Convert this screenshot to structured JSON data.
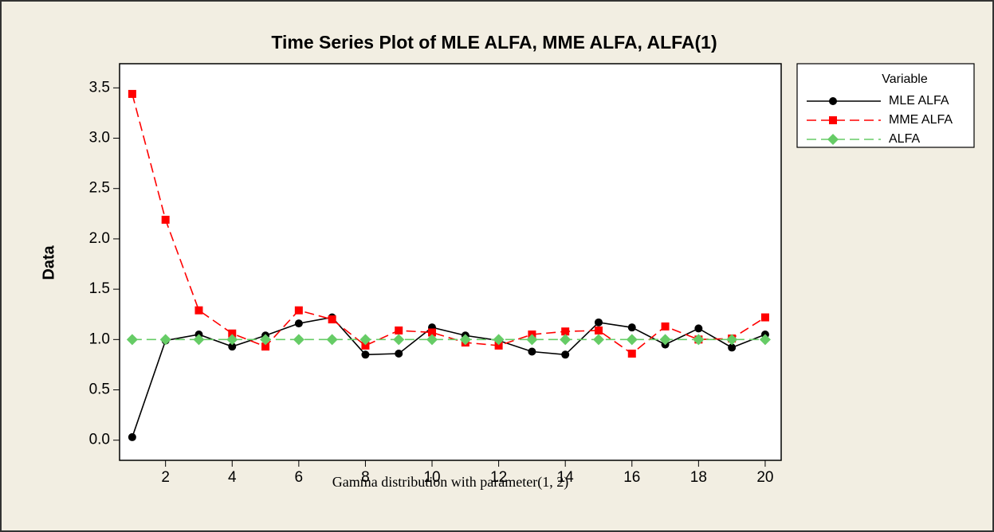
{
  "chart_data": {
    "type": "line",
    "title": "Time Series Plot of MLE ALFA, MME ALFA, ALFA(1)",
    "x_label": "Gamma distribution with parameter(1, 2)",
    "y_label": "Data",
    "legend_title": "Variable",
    "legend": "outside-right-top",
    "x": [
      1,
      2,
      3,
      4,
      5,
      6,
      7,
      8,
      9,
      10,
      11,
      12,
      13,
      14,
      15,
      16,
      17,
      18,
      19,
      20
    ],
    "series": [
      {
        "name": "MLE ALFA",
        "color": "#000000",
        "marker": "circle",
        "dash": "solid",
        "values": [
          0.03,
          0.99,
          1.05,
          0.93,
          1.04,
          1.16,
          1.22,
          0.85,
          0.86,
          1.12,
          1.04,
          0.99,
          0.88,
          0.85,
          1.17,
          1.12,
          0.95,
          1.11,
          0.92,
          1.05
        ]
      },
      {
        "name": "MME ALFA",
        "color": "#ff0000",
        "marker": "square",
        "dash": "dashed",
        "values": [
          3.44,
          2.19,
          1.29,
          1.06,
          0.93,
          1.29,
          1.2,
          0.94,
          1.09,
          1.07,
          0.97,
          0.94,
          1.05,
          1.08,
          1.09,
          0.86,
          1.13,
          1.0,
          1.01,
          1.22
        ]
      },
      {
        "name": "ALFA",
        "color": "#66cc66",
        "marker": "diamond",
        "dash": "dashed",
        "values": [
          1,
          1,
          1,
          1,
          1,
          1,
          1,
          1,
          1,
          1,
          1,
          1,
          1,
          1,
          1,
          1,
          1,
          1,
          1,
          1
        ]
      }
    ],
    "xlim": [
      0.62,
      20.48
    ],
    "xticks": [
      2,
      4,
      6,
      8,
      10,
      12,
      14,
      16,
      18,
      20
    ],
    "ylim": [
      -0.2,
      3.74
    ],
    "yticks": [
      {
        "value": 0,
        "label": "0.0"
      },
      0.5,
      {
        "value": 1,
        "label": "1.0"
      },
      1.5,
      {
        "value": 2,
        "label": "2.0"
      },
      2.5,
      {
        "value": 3,
        "label": "3.0"
      },
      3.5
    ]
  }
}
